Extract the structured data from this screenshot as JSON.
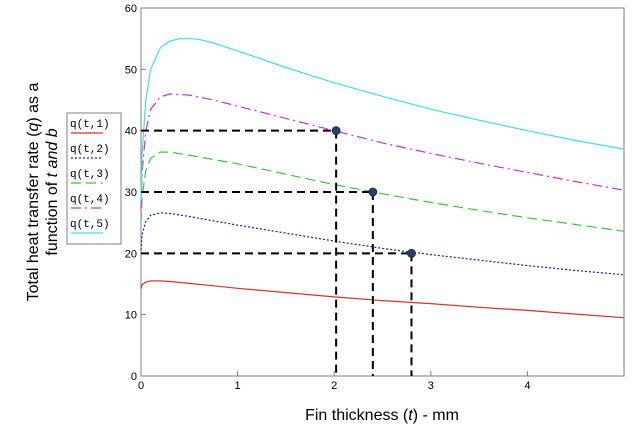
{
  "chart_data": {
    "type": "line",
    "title": "",
    "xlabel": {
      "prefix": "Fin thickness (",
      "var": "t",
      "suffix": ") - mm"
    },
    "ylabel": {
      "line1_prefix": "Total heat transfer rate (",
      "line1_var": "q",
      "line1_suffix": ") as a",
      "line2_prefix": "function of ",
      "line2_var": "t and b"
    },
    "xlim": [
      0,
      5
    ],
    "ylim": [
      0,
      60
    ],
    "xticks": [
      0,
      1,
      2,
      3,
      4
    ],
    "yticks": [
      0,
      10,
      20,
      30,
      40,
      50,
      60
    ],
    "series": [
      {
        "name": "q(t,1)",
        "color": "#e0302a",
        "dash": "",
        "x": [
          0,
          0.01,
          0.05,
          0.1,
          0.2,
          0.3,
          0.5,
          0.75,
          1,
          1.5,
          2,
          2.5,
          3,
          3.5,
          4,
          4.5,
          5
        ],
        "y": [
          14.2,
          14.9,
          15.3,
          15.5,
          15.5,
          15.4,
          15.1,
          14.7,
          14.3,
          13.6,
          12.9,
          12.3,
          11.8,
          11.2,
          10.7,
          10.1,
          9.5
        ]
      },
      {
        "name": "q(t,2)",
        "color": "#1c1cb4",
        "dash": "2,2",
        "x": [
          0,
          0.01,
          0.05,
          0.1,
          0.2,
          0.3,
          0.5,
          0.75,
          1,
          1.5,
          2,
          2.5,
          3,
          3.5,
          4,
          4.5,
          5
        ],
        "y": [
          20.5,
          23.0,
          25.2,
          26.2,
          26.6,
          26.5,
          26.0,
          25.3,
          24.6,
          23.3,
          22.0,
          20.8,
          19.8,
          18.9,
          18.0,
          17.2,
          16.5
        ]
      },
      {
        "name": "q(t,3)",
        "color": "#3cc83c",
        "dash": "10,5",
        "x": [
          0,
          0.01,
          0.05,
          0.1,
          0.2,
          0.3,
          0.5,
          0.75,
          1,
          1.5,
          2,
          2.5,
          3,
          3.5,
          4,
          4.5,
          5
        ],
        "y": [
          25.0,
          29.0,
          33.5,
          35.5,
          36.5,
          36.5,
          36.0,
          35.3,
          34.6,
          32.9,
          31.2,
          29.7,
          28.3,
          27.0,
          25.8,
          24.7,
          23.6
        ]
      },
      {
        "name": "q(t,4)",
        "color": "#cc33cc",
        "dash": "10,4,2,4",
        "x": [
          0,
          0.01,
          0.05,
          0.1,
          0.2,
          0.3,
          0.5,
          0.75,
          1,
          1.5,
          2,
          2.5,
          3,
          3.5,
          4,
          4.5,
          5
        ],
        "y": [
          27.0,
          33.0,
          40.0,
          43.5,
          45.5,
          46.0,
          45.8,
          45.0,
          44.0,
          42.0,
          40.0,
          38.0,
          36.3,
          34.7,
          33.2,
          31.7,
          30.3
        ]
      },
      {
        "name": "q(t,5)",
        "color": "#44e0e0",
        "dash": "",
        "x": [
          0,
          0.01,
          0.05,
          0.1,
          0.2,
          0.3,
          0.4,
          0.5,
          0.6,
          0.75,
          1,
          1.5,
          2,
          2.5,
          3,
          3.5,
          4,
          4.5,
          5
        ],
        "y": [
          28.5,
          36.0,
          45.0,
          50.0,
          53.5,
          54.6,
          55.0,
          55.0,
          54.9,
          54.3,
          53.0,
          50.3,
          47.8,
          45.6,
          43.5,
          41.7,
          40.0,
          38.4,
          37.0
        ]
      }
    ],
    "markers": [
      {
        "x": 2.02,
        "y": 40,
        "color": "#2c3e6e"
      },
      {
        "x": 2.4,
        "y": 30,
        "color": "#2c3e6e"
      },
      {
        "x": 2.8,
        "y": 20,
        "color": "#2c3e6e"
      }
    ],
    "guide_lines": {
      "color": "#000000",
      "dash": "8,5"
    }
  }
}
